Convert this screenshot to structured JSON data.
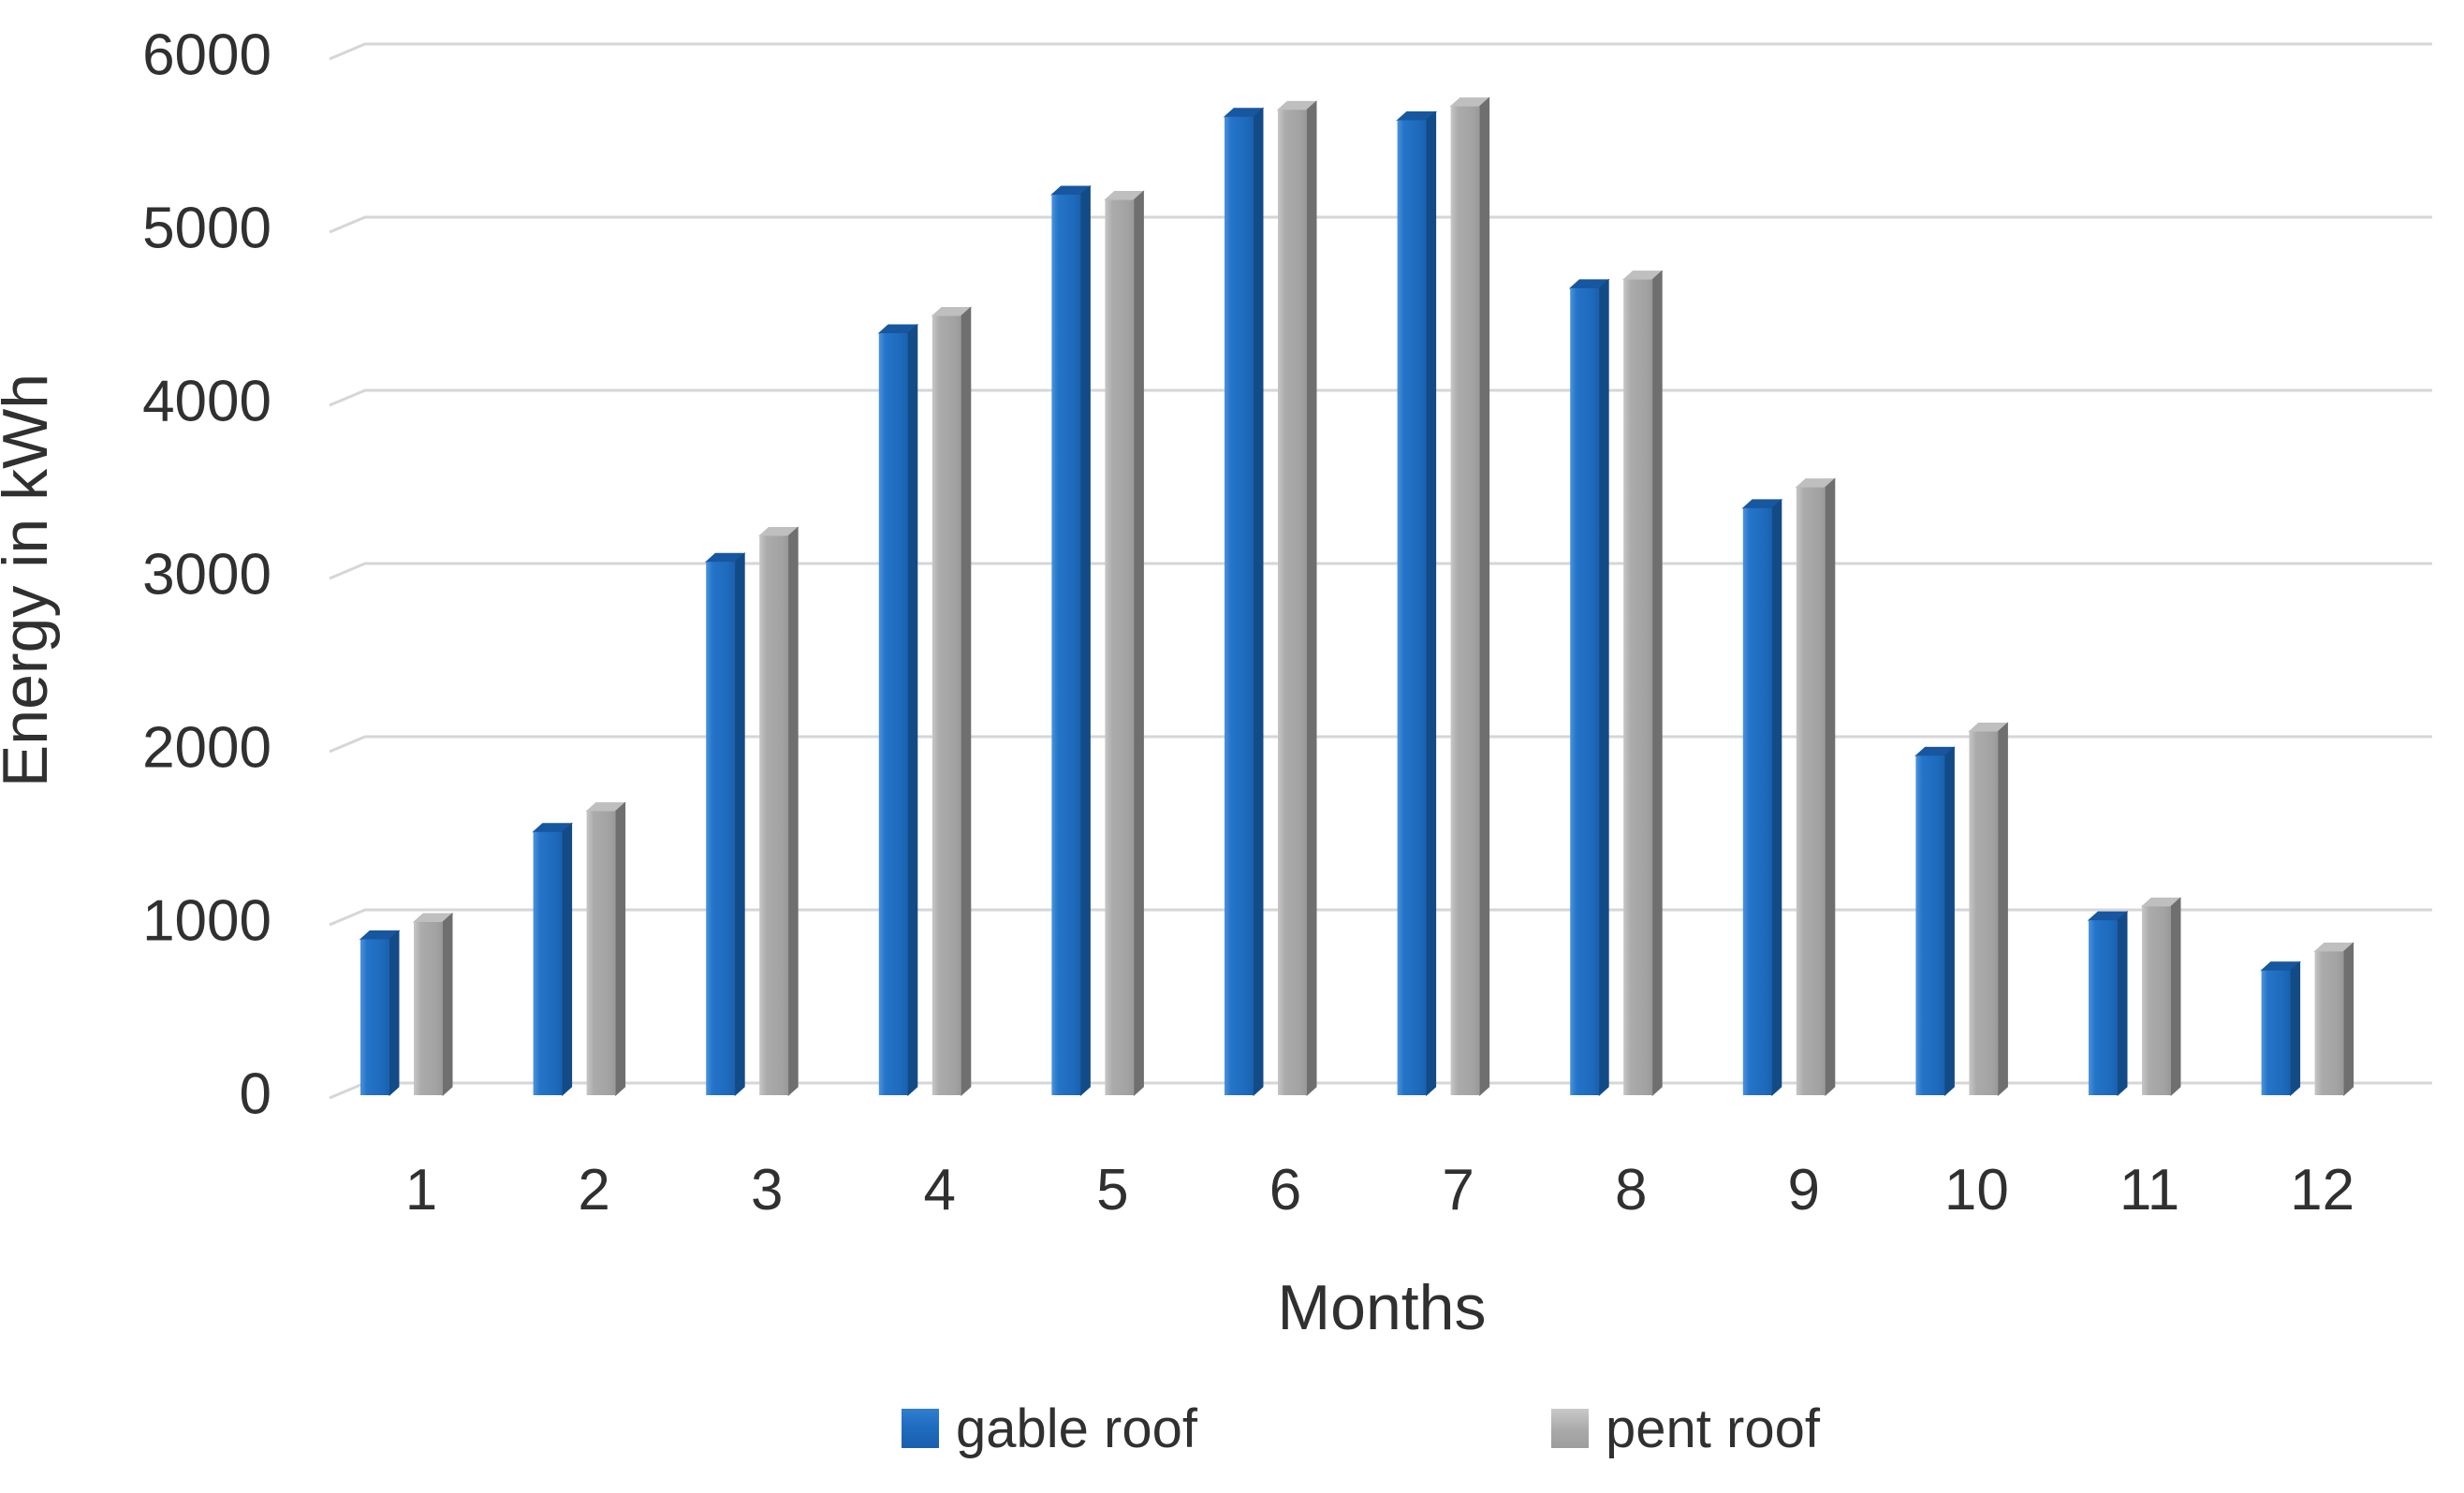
{
  "chart_data": {
    "type": "bar",
    "title": "",
    "xlabel": "Months",
    "ylabel": "Energy in kWh",
    "categories": [
      "1",
      "2",
      "3",
      "4",
      "5",
      "6",
      "7",
      "8",
      "9",
      "10",
      "11",
      "12"
    ],
    "series": [
      {
        "name": "gable roof",
        "color": "#1F6CC0",
        "values": [
          900,
          1520,
          3080,
          4400,
          5200,
          5650,
          5630,
          4660,
          3390,
          1960,
          1010,
          720
        ]
      },
      {
        "name": "pent roof",
        "color": "#A6A6A6",
        "values": [
          1000,
          1640,
          3230,
          4500,
          5170,
          5690,
          5710,
          4710,
          3510,
          2100,
          1090,
          830
        ]
      }
    ],
    "ylim": [
      0,
      6000
    ],
    "ytick_step": 1000,
    "yticks": [
      "0",
      "1000",
      "2000",
      "3000",
      "4000",
      "5000",
      "6000"
    ],
    "grid": "horizontal",
    "legend_position": "bottom",
    "style": "3d-column"
  },
  "colors": {
    "background": "#FFFFFF",
    "gridline": "#D6D6D6",
    "text": "#303030",
    "gable_front": "#1F6CC0",
    "gable_top": "#17579F",
    "gable_side": "#134B87",
    "pent_front": "#A6A6A6",
    "pent_top": "#BFBFBF",
    "pent_side": "#6F6F6F"
  }
}
